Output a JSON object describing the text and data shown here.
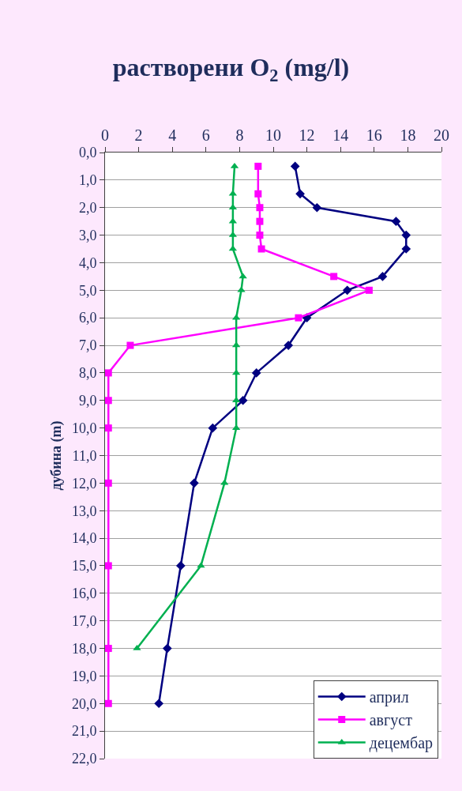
{
  "chart_data": {
    "type": "line",
    "title": "растворени O$_{2}$ (mg/l)",
    "ylabel": "дубина (m)",
    "x": [
      0.5,
      1.5,
      2.0,
      2.5,
      3.0,
      3.5,
      4.5,
      5.0,
      6.0,
      7.0,
      8.0,
      9.0,
      10.0,
      12.0,
      15.0,
      18.0,
      20.0
    ],
    "series": [
      {
        "name": "април",
        "color": "#000080",
        "marker": "diamond",
        "values": [
          11.3,
          11.6,
          12.6,
          17.3,
          17.9,
          17.9,
          16.5,
          14.4,
          12.0,
          10.9,
          9.0,
          8.2,
          6.4,
          5.3,
          4.5,
          3.7,
          3.2
        ]
      },
      {
        "name": "август",
        "color": "#ff00ff",
        "marker": "square",
        "values": [
          9.1,
          9.1,
          9.2,
          9.2,
          9.2,
          9.3,
          13.6,
          15.7,
          11.5,
          1.5,
          0.2,
          0.2,
          0.2,
          0.2,
          0.2,
          0.2,
          0.2
        ]
      },
      {
        "name": "децембар",
        "color": "#00b050",
        "marker": "triangle",
        "values": [
          7.7,
          7.6,
          7.6,
          7.6,
          7.6,
          7.6,
          8.2,
          8.1,
          7.8,
          7.8,
          7.8,
          7.8,
          7.8,
          7.1,
          5.7,
          1.9,
          null
        ]
      }
    ],
    "xlim": [
      0,
      20
    ],
    "xticks": [
      0,
      2,
      4,
      6,
      8,
      10,
      12,
      14,
      16,
      18,
      20
    ],
    "ylim": [
      22,
      0
    ],
    "yticks": [
      {
        "value": 0,
        "label": "0,0"
      },
      {
        "value": 1,
        "label": "1,0"
      },
      {
        "value": 2,
        "label": "2,0"
      },
      {
        "value": 3,
        "label": "3,0"
      },
      {
        "value": 4,
        "label": "4,0"
      },
      {
        "value": 5,
        "label": "5,0"
      },
      {
        "value": 6,
        "label": "6,0"
      },
      {
        "value": 7,
        "label": "7,0"
      },
      {
        "value": 8,
        "label": "8,0"
      },
      {
        "value": 9,
        "label": "9,0"
      },
      {
        "value": 10,
        "label": "10,0"
      },
      {
        "value": 11,
        "label": "11,0"
      },
      {
        "value": 12,
        "label": "12,0"
      },
      {
        "value": 13,
        "label": "13,0"
      },
      {
        "value": 14,
        "label": "14,0"
      },
      {
        "value": 15,
        "label": "15,0"
      },
      {
        "value": 16,
        "label": "16,0"
      },
      {
        "value": 17,
        "label": "17,0"
      },
      {
        "value": 18,
        "label": "18,0"
      },
      {
        "value": 19,
        "label": "19,0"
      },
      {
        "value": 20,
        "label": "20,0"
      },
      {
        "value": 21,
        "label": "21,0"
      },
      {
        "value": 22,
        "label": "22,0"
      }
    ],
    "orientation": "horizontal",
    "grid": "y",
    "legend": "bottom right",
    "line_style": "solid"
  }
}
